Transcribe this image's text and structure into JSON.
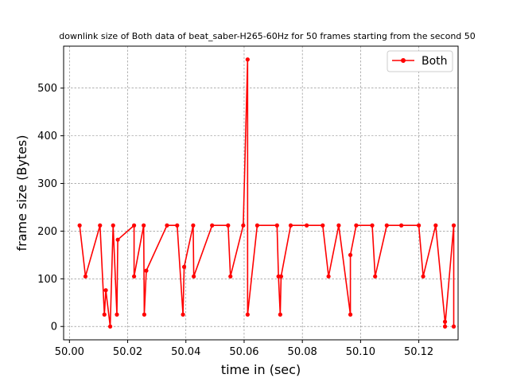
{
  "chart_data": {
    "type": "line",
    "title": "downlink size of Both data of beat_saber-H265-60Hz for 50 frames starting from the second 50",
    "xlabel": "time in (sec)",
    "ylabel": "frame size (Bytes)",
    "xlim": [
      49.998,
      50.1335
    ],
    "ylim": [
      -28,
      588
    ],
    "xticks": [
      50.0,
      50.02,
      50.04,
      50.06,
      50.08,
      50.1,
      50.12
    ],
    "xtick_labels": [
      "50.00",
      "50.02",
      "50.04",
      "50.06",
      "50.08",
      "50.10",
      "50.12"
    ],
    "yticks": [
      0,
      100,
      200,
      300,
      400,
      500
    ],
    "ytick_labels": [
      "0",
      "100",
      "200",
      "300",
      "400",
      "500"
    ],
    "grid": true,
    "legend_position": "top-right",
    "series": [
      {
        "name": "Both",
        "color": "#ff0000",
        "marker": "circle",
        "x": [
          50.0035,
          50.0055,
          50.0105,
          50.012,
          50.0125,
          50.014,
          50.015,
          50.0163,
          50.0166,
          50.0222,
          50.0222,
          50.0255,
          50.0257,
          50.0264,
          50.0335,
          50.037,
          50.039,
          50.0394,
          50.0425,
          50.0427,
          50.049,
          50.0545,
          50.0553,
          50.0597,
          50.0612,
          50.0612,
          50.0645,
          50.0713,
          50.0718,
          50.0724,
          50.0727,
          50.076,
          50.0815,
          50.087,
          50.089,
          50.0925,
          50.0965,
          50.0965,
          50.0985,
          50.104,
          50.105,
          50.109,
          50.114,
          50.12,
          50.1215,
          50.1258,
          50.129,
          50.129,
          50.132,
          50.132
        ],
        "y": [
          212,
          105,
          212,
          25,
          76,
          0,
          212,
          25,
          182,
          212,
          105,
          212,
          25,
          117,
          212,
          212,
          25,
          125,
          212,
          105,
          212,
          212,
          105,
          212,
          560,
          25,
          212,
          212,
          105,
          25,
          105,
          212,
          212,
          212,
          105,
          212,
          25,
          150,
          212,
          212,
          105,
          212,
          212,
          212,
          105,
          212,
          10,
          0,
          212,
          0
        ]
      }
    ]
  }
}
